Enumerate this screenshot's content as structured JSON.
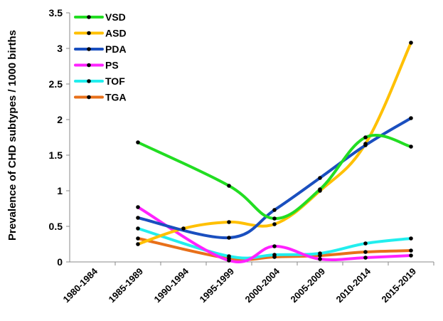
{
  "chart_data": {
    "type": "line",
    "title": "",
    "xlabel": "",
    "ylabel": "Prevalence of CHD subtypes / 1000 births",
    "ylim": [
      0,
      3.5
    ],
    "yticks": [
      "0",
      "0.5",
      "1",
      "1.5",
      "2",
      "2.5",
      "3",
      "3.5"
    ],
    "categories": [
      "1980-1984",
      "1985-1989",
      "1990-1994",
      "1995-1999",
      "2000-2004",
      "2005-2009",
      "2010-2014",
      "2015-2019"
    ],
    "legend_position": "top-left",
    "grid": false,
    "series": [
      {
        "name": "VSD",
        "color": "#22dd22",
        "values": [
          null,
          1.68,
          null,
          1.07,
          0.61,
          1.02,
          1.75,
          1.62
        ]
      },
      {
        "name": "ASD",
        "color": "#ffc000",
        "values": [
          null,
          0.25,
          0.47,
          0.56,
          0.53,
          1.0,
          1.66,
          3.08
        ]
      },
      {
        "name": "PDA",
        "color": "#1a4fbf",
        "values": [
          null,
          0.62,
          null,
          0.34,
          0.73,
          1.18,
          1.64,
          2.02
        ]
      },
      {
        "name": "PS",
        "color": "#ff22ff",
        "values": [
          null,
          0.77,
          null,
          0.02,
          0.22,
          0.04,
          0.06,
          0.09
        ]
      },
      {
        "name": "TOF",
        "color": "#22eeee",
        "values": [
          null,
          0.47,
          null,
          0.08,
          0.1,
          0.12,
          0.26,
          0.33
        ]
      },
      {
        "name": "TGA",
        "color": "#e8701a",
        "values": [
          null,
          0.33,
          null,
          0.05,
          0.07,
          0.09,
          0.14,
          0.16
        ]
      }
    ]
  }
}
